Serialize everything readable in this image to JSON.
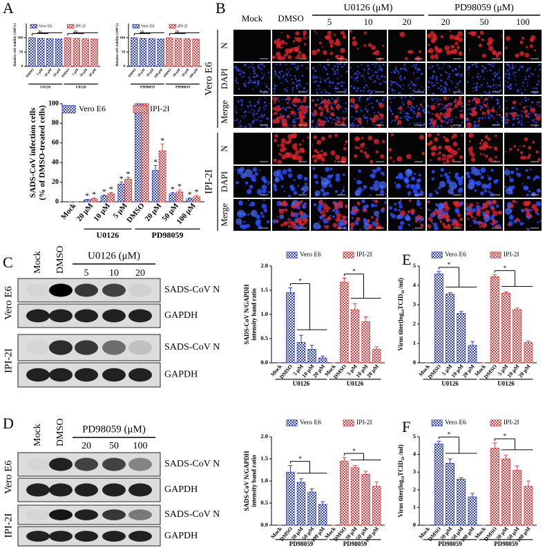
{
  "panel_labels": [
    "A",
    "B",
    "C",
    "D",
    "E",
    "F"
  ],
  "panel_b": {
    "columns": [
      "Mock",
      "DMSO",
      "5",
      "10",
      "20",
      "20",
      "50",
      "100"
    ],
    "treatments": [
      "U0126 (μM)",
      "PD98059 (μM)"
    ],
    "rows": [
      "N",
      "DAPI",
      "Merge"
    ],
    "cell_lines": [
      "Vero E6",
      "IPI-2I"
    ]
  },
  "panel_c_blot": {
    "lanes": [
      "Mock",
      "DMSO",
      "5",
      "10",
      "20"
    ],
    "treatment": "U0126 (μM)",
    "bands": [
      "SADS-CoV N",
      "GAPDH",
      "SADS-CoV N",
      "GAPDH"
    ],
    "cell_lines": [
      "Vero E6",
      "IPI-2I"
    ]
  },
  "panel_d_blot": {
    "lanes": [
      "Mock",
      "DMSO",
      "20",
      "50",
      "100"
    ],
    "treatment": "PD98059 (μM)",
    "bands": [
      "SADS-CoV N",
      "GAPDH",
      "SADS-CoV N",
      "GAPDH"
    ],
    "cell_lines": [
      "Vero E6",
      "IPI-2I"
    ]
  },
  "chart_data": [
    {
      "type": "bar",
      "ylabel": "Relative cell viability (100%)",
      "ylim": [
        0,
        150
      ],
      "yticks": [
        0,
        50,
        100
      ],
      "legend": "top",
      "groups": [
        {
          "label": "U0126",
          "categories": [
            "DMSO",
            "5 μM",
            "10 μM",
            "20 μM"
          ],
          "significance": "ns"
        },
        {
          "label": "U0126",
          "categories": [
            "DMSO",
            "5 μM",
            "10 μM",
            "20 μM"
          ],
          "significance": "ns"
        }
      ],
      "series": [
        {
          "name": "Vero E6",
          "color": "#2b3bd6",
          "values": [
            100,
            98,
            97,
            96,
            null,
            null,
            null,
            null
          ]
        },
        {
          "name": "IPI-2I",
          "color": "#e8383a",
          "values": [
            null,
            null,
            null,
            null,
            100,
            98,
            97,
            96
          ]
        }
      ]
    },
    {
      "type": "bar",
      "ylabel": "Relative cell viability (100%)",
      "ylim": [
        0,
        150
      ],
      "yticks": [
        0,
        50,
        100
      ],
      "legend": "top",
      "groups": [
        {
          "label": "PD98059",
          "categories": [
            "DMSO",
            "20 μM",
            "50 μM",
            "100 μM"
          ],
          "significance": "ns"
        },
        {
          "label": "PD98059",
          "categories": [
            "DMSO",
            "20 μM",
            "50 μM",
            "100 μM"
          ],
          "significance": "ns"
        }
      ],
      "series": [
        {
          "name": "Vero E6",
          "color": "#2b3bd6",
          "values": [
            100,
            98,
            97,
            96,
            null,
            null,
            null,
            null
          ]
        },
        {
          "name": "IPI-2I",
          "color": "#e8383a",
          "values": [
            null,
            null,
            null,
            null,
            100,
            98,
            97,
            96
          ]
        }
      ]
    },
    {
      "type": "bar",
      "ylabel": [
        "SADS-CoV infection cells",
        "(% of DMSO-treated cells)"
      ],
      "ylim": [
        0,
        100
      ],
      "yticks": [
        0,
        20,
        40,
        60,
        80,
        100
      ],
      "legend": "top",
      "groups": [
        {
          "label": null,
          "categories": [
            "Mock"
          ]
        },
        {
          "label": "U0126",
          "categories": [
            "20 μM",
            "10 μM",
            "5 μM"
          ]
        },
        {
          "label": "PD98059",
          "categories": [
            "DMSO",
            "20 μM",
            "50 μM",
            "100 μM"
          ]
        }
      ],
      "series": [
        {
          "name": "Vero E6",
          "color": "#2b3bd6",
          "values": [
            0,
            2,
            6,
            18,
            100,
            32,
            8,
            3
          ],
          "errors": [
            0,
            0.5,
            1,
            2,
            0,
            5,
            1.5,
            1
          ],
          "significance": [
            null,
            "*",
            "*",
            "*",
            null,
            "*",
            "*",
            "*"
          ]
        },
        {
          "name": "IPI-2I",
          "color": "#e8383a",
          "values": [
            0,
            3,
            8,
            23,
            100,
            52,
            10,
            5
          ],
          "errors": [
            0,
            1,
            1.5,
            2,
            0,
            7,
            2,
            1.5
          ],
          "significance": [
            null,
            "*",
            "*",
            "*",
            null,
            "*",
            "*",
            "*"
          ]
        }
      ]
    },
    {
      "type": "bar",
      "ylabel": [
        "SADS-CoV N/GAPDH",
        "intensity band ratio"
      ],
      "ylim": [
        0,
        2
      ],
      "yticks": [
        {
          "value": 0,
          "label": "0.0"
        },
        {
          "value": 0.5,
          "label": "0.5"
        },
        {
          "value": 1,
          "label": "1.0"
        },
        {
          "value": 1.5,
          "label": "1.5"
        },
        {
          "value": 2,
          "label": "2.0"
        }
      ],
      "legend": "top",
      "groups": [
        {
          "label": "U0126",
          "categories": [
            "Mock",
            "DMSO",
            "5 μM",
            "10 μM",
            "20 μM"
          ],
          "significance": "*"
        },
        {
          "label": "U0126",
          "categories": [
            "Mock",
            "DMSO",
            "5 μM",
            "10 μM",
            "20 μM"
          ],
          "significance": "*"
        }
      ],
      "series": [
        {
          "name": "Vero E6",
          "color": "#2b3bd6",
          "values": [
            0,
            1.45,
            0.42,
            0.28,
            0.1,
            null,
            null,
            null,
            null,
            null
          ],
          "errors": [
            0,
            0.1,
            0.15,
            0.08,
            0.04,
            null,
            null,
            null,
            null,
            null
          ]
        },
        {
          "name": "IPI-2I",
          "color": "#e8383a",
          "values": [
            null,
            null,
            null,
            null,
            null,
            0,
            1.67,
            1.1,
            0.85,
            0.28
          ],
          "errors": [
            null,
            null,
            null,
            null,
            null,
            0,
            0.08,
            0.12,
            0.1,
            0.05
          ]
        }
      ]
    },
    {
      "type": "bar",
      "ylabel": "Virus titer(log₁₀TCID₅₀ /ml)",
      "ylim": [
        0,
        5
      ],
      "yticks": [
        0,
        1,
        2,
        3,
        4,
        5
      ],
      "legend": "top",
      "groups": [
        {
          "label": "U0126",
          "categories": [
            "Mock",
            "DMSO",
            "5 μM",
            "10 μM",
            "20 μM"
          ],
          "significance": "*"
        },
        {
          "label": "U0126",
          "categories": [
            "Mock",
            "DMSO",
            "5 μM",
            "10 μM",
            "20 μM"
          ],
          "significance": "*"
        }
      ],
      "series": [
        {
          "name": "Vero E6",
          "color": "#2b3bd6",
          "values": [
            0,
            4.6,
            3.55,
            2.55,
            0.9,
            null,
            null,
            null,
            null,
            null
          ],
          "errors": [
            0,
            0.12,
            0.08,
            0.1,
            0.2,
            null,
            null,
            null,
            null,
            null
          ]
        },
        {
          "name": "IPI-2I",
          "color": "#e8383a",
          "values": [
            null,
            null,
            null,
            null,
            null,
            0,
            4.45,
            3.6,
            2.75,
            1.05
          ],
          "errors": [
            null,
            null,
            null,
            null,
            null,
            0,
            0.1,
            0.06,
            0.08,
            0.08
          ]
        }
      ]
    },
    {
      "type": "bar",
      "ylabel": [
        "SADS-CoV N/GAPDH",
        "intensity band ratio"
      ],
      "ylim": [
        0,
        2
      ],
      "yticks": [
        {
          "value": 0,
          "label": "0.0"
        },
        {
          "value": 0.5,
          "label": "0.5"
        },
        {
          "value": 1,
          "label": "1.0"
        },
        {
          "value": 1.5,
          "label": "1.5"
        },
        {
          "value": 2,
          "label": "2.0"
        }
      ],
      "legend": "top",
      "groups": [
        {
          "label": "PD98059",
          "categories": [
            "Mock",
            "DMSO",
            "20 μM",
            "50 μM",
            "100 μM"
          ],
          "significance": "*"
        },
        {
          "label": "PD98059",
          "categories": [
            "Mock",
            "DMSO",
            "20 μM",
            "50 μM",
            "100 μM"
          ],
          "significance": "*"
        }
      ],
      "series": [
        {
          "name": "Vero E6",
          "color": "#2b3bd6",
          "values": [
            0,
            1.2,
            0.97,
            0.75,
            0.47,
            null,
            null,
            null,
            null,
            null
          ],
          "errors": [
            0,
            0.15,
            0.08,
            0.07,
            0.06,
            null,
            null,
            null,
            null,
            null
          ]
        },
        {
          "name": "IPI-2I",
          "color": "#e8383a",
          "values": [
            null,
            null,
            null,
            null,
            null,
            0,
            1.45,
            1.3,
            1.15,
            0.88
          ],
          "errors": [
            null,
            null,
            null,
            null,
            null,
            0,
            0.08,
            0.05,
            0.07,
            0.1
          ]
        }
      ]
    },
    {
      "type": "bar",
      "ylabel": "Virus titer(log₁₀TCID₅₀ /ml)",
      "ylim": [
        0,
        5
      ],
      "yticks": [
        0,
        1,
        2,
        3,
        4,
        5
      ],
      "legend": "top",
      "groups": [
        {
          "label": "PD98059",
          "categories": [
            "Mock",
            "DMSO",
            "20 μM",
            "50 μM",
            "100 μM"
          ],
          "significance": "*"
        },
        {
          "label": "PD98059",
          "categories": [
            "Mock",
            "DMSO",
            "20 μM",
            "50 μM",
            "100 μM"
          ],
          "significance": "*"
        }
      ],
      "series": [
        {
          "name": "Vero E6",
          "color": "#2b3bd6",
          "values": [
            0,
            4.6,
            3.5,
            2.6,
            1.6,
            null,
            null,
            null,
            null,
            null
          ],
          "errors": [
            0,
            0.15,
            0.25,
            0.08,
            0.2,
            null,
            null,
            null,
            null,
            null
          ]
        },
        {
          "name": "IPI-2I",
          "color": "#e8383a",
          "values": [
            null,
            null,
            null,
            null,
            null,
            0,
            4.35,
            3.75,
            3.1,
            2.2
          ],
          "errors": [
            null,
            null,
            null,
            null,
            null,
            0,
            0.3,
            0.2,
            0.25,
            0.3
          ]
        }
      ]
    }
  ]
}
